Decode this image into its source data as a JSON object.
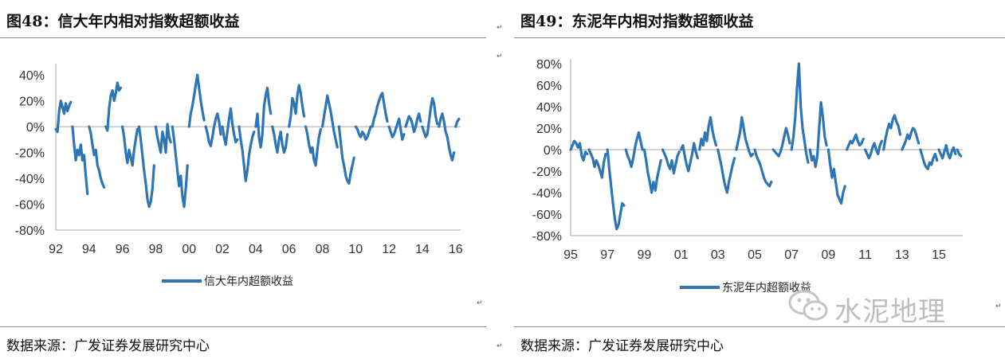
{
  "left": {
    "figure_title": "图48：信大年内相对指数超额收益",
    "source": "数据来源：广发证券发展研究中心"
  },
  "right": {
    "figure_title": "图49：东泥年内相对指数超额收益",
    "source": "数据来源：广发证券发展研究中心"
  },
  "watermark": {
    "text": "水泥地理",
    "icon": "wechat-logo-icon"
  },
  "chart_data": [
    {
      "type": "line",
      "color": "#2e75b6",
      "legend": [
        "信大年内超额收益"
      ],
      "legend_position": "bottom",
      "grid": false,
      "y_axis": {
        "ticks": [
          "40%",
          "20%",
          "0%",
          "-20%",
          "-40%",
          "-60%",
          "-80%"
        ],
        "ylim": [
          -80,
          45
        ]
      },
      "x_axis": {
        "ticks": [
          "92",
          "94",
          "96",
          "98",
          "00",
          "02",
          "04",
          "06",
          "08",
          "10",
          "12",
          "14",
          "16"
        ],
        "xlim": [
          1992,
          2016.3
        ]
      },
      "series": [
        {
          "name": "信大年内超额收益",
          "x": [
            1992.0,
            1992.1,
            1992.2,
            1992.3,
            1992.4,
            1992.5,
            1992.6,
            1992.7,
            1992.8,
            1992.9,
            1993.0,
            1993.1,
            1993.2,
            1993.3,
            1993.4,
            1993.5,
            1993.6,
            1993.7,
            1993.8,
            1993.9,
            1994.0,
            1994.1,
            1994.2,
            1994.3,
            1994.4,
            1994.5,
            1994.6,
            1994.7,
            1994.8,
            1994.9,
            1995.0,
            1995.1,
            1995.2,
            1995.3,
            1995.4,
            1995.5,
            1995.6,
            1995.7,
            1995.8,
            1995.9,
            1996.0,
            1996.1,
            1996.2,
            1996.3,
            1996.4,
            1996.5,
            1996.6,
            1996.7,
            1996.8,
            1996.9,
            1997.0,
            1997.1,
            1997.2,
            1997.3,
            1997.4,
            1997.5,
            1997.6,
            1997.7,
            1997.8,
            1997.9,
            1998.0,
            1998.1,
            1998.2,
            1998.3,
            1998.4,
            1998.5,
            1998.6,
            1998.7,
            1998.8,
            1998.9,
            1999.0,
            1999.1,
            1999.2,
            1999.3,
            1999.4,
            1999.5,
            1999.6,
            1999.7,
            1999.8,
            1999.9,
            2000.0,
            2000.1,
            2000.2,
            2000.3,
            2000.4,
            2000.5,
            2000.6,
            2000.7,
            2000.8,
            2000.9,
            2001.0,
            2001.1,
            2001.2,
            2001.3,
            2001.4,
            2001.5,
            2001.6,
            2001.7,
            2001.8,
            2001.9,
            2002.0,
            2002.1,
            2002.2,
            2002.3,
            2002.4,
            2002.5,
            2002.6,
            2002.7,
            2002.8,
            2002.9,
            2003.0,
            2003.1,
            2003.2,
            2003.3,
            2003.4,
            2003.5,
            2003.6,
            2003.7,
            2003.8,
            2003.9,
            2004.0,
            2004.1,
            2004.2,
            2004.3,
            2004.4,
            2004.5,
            2004.6,
            2004.7,
            2004.8,
            2004.9,
            2005.0,
            2005.1,
            2005.2,
            2005.3,
            2005.4,
            2005.5,
            2005.6,
            2005.7,
            2005.8,
            2005.9,
            2006.0,
            2006.1,
            2006.2,
            2006.3,
            2006.4,
            2006.5,
            2006.6,
            2006.7,
            2006.8,
            2006.9,
            2007.0,
            2007.1,
            2007.2,
            2007.3,
            2007.4,
            2007.5,
            2007.6,
            2007.7,
            2007.8,
            2007.9,
            2008.0,
            2008.1,
            2008.2,
            2008.3,
            2008.4,
            2008.5,
            2008.6,
            2008.7,
            2008.8,
            2008.9,
            2009.0,
            2009.1,
            2009.2,
            2009.3,
            2009.4,
            2009.5,
            2009.6,
            2009.7,
            2009.8,
            2009.9,
            2010.0,
            2010.1,
            2010.2,
            2010.3,
            2010.4,
            2010.5,
            2010.6,
            2010.7,
            2010.8,
            2010.9,
            2011.0,
            2011.1,
            2011.2,
            2011.3,
            2011.4,
            2011.5,
            2011.6,
            2011.7,
            2011.8,
            2011.9,
            2012.0,
            2012.1,
            2012.2,
            2012.3,
            2012.4,
            2012.5,
            2012.6,
            2012.7,
            2012.8,
            2012.9,
            2013.0,
            2013.1,
            2013.2,
            2013.3,
            2013.4,
            2013.5,
            2013.6,
            2013.7,
            2013.8,
            2013.9,
            2014.0,
            2014.1,
            2014.2,
            2014.3,
            2014.4,
            2014.5,
            2014.6,
            2014.7,
            2014.8,
            2014.9,
            2015.0,
            2015.1,
            2015.2,
            2015.3,
            2015.4,
            2015.5,
            2015.6,
            2015.7,
            2015.8,
            2015.9,
            2016.0,
            2016.1,
            2016.2
          ],
          "y": [
            -2,
            -4,
            12,
            20,
            15,
            10,
            18,
            12,
            16,
            19,
            0,
            -14,
            -26,
            -18,
            -22,
            -14,
            -26,
            -22,
            -38,
            -52,
            0,
            -5,
            -14,
            -22,
            -18,
            -30,
            -34,
            -40,
            -44,
            -47,
            0,
            -3,
            14,
            24,
            28,
            20,
            26,
            34,
            28,
            30,
            0,
            -8,
            -20,
            -28,
            -18,
            -24,
            -30,
            -18,
            -10,
            -2,
            0,
            -10,
            -22,
            -34,
            -44,
            -56,
            -62,
            -58,
            -48,
            -30,
            0,
            -8,
            -14,
            -20,
            -4,
            -10,
            -20,
            2,
            -8,
            -12,
            0,
            -10,
            -22,
            -34,
            -46,
            -38,
            -54,
            -62,
            -48,
            -30,
            0,
            10,
            16,
            24,
            32,
            40,
            30,
            20,
            12,
            5,
            0,
            -5,
            -12,
            -15,
            -8,
            0,
            6,
            10,
            4,
            -6,
            0,
            -8,
            -14,
            -4,
            6,
            14,
            2,
            -6,
            -12,
            -10,
            0,
            -10,
            -18,
            -30,
            -42,
            -34,
            -22,
            -14,
            -8,
            -4,
            0,
            10,
            -8,
            -16,
            -6,
            16,
            24,
            30,
            18,
            10,
            0,
            -6,
            -14,
            -20,
            -10,
            -4,
            -14,
            -20,
            -16,
            -6,
            0,
            8,
            22,
            18,
            10,
            24,
            32,
            26,
            16,
            8,
            0,
            -6,
            -14,
            -20,
            -16,
            -26,
            -30,
            -18,
            -8,
            -2,
            0,
            8,
            16,
            24,
            18,
            12,
            4,
            -4,
            -10,
            -16,
            0,
            -12,
            -24,
            -30,
            -38,
            -42,
            -44,
            -36,
            -30,
            -24,
            0,
            -2,
            -6,
            -8,
            -4,
            -6,
            -10,
            -8,
            -4,
            0,
            0,
            6,
            10,
            16,
            20,
            24,
            26,
            18,
            10,
            4,
            0,
            -4,
            -8,
            -6,
            -2,
            2,
            6,
            -2,
            -10,
            -6,
            0,
            4,
            8,
            6,
            2,
            -4,
            0,
            6,
            10,
            4,
            0,
            -4,
            -8,
            -6,
            4,
            14,
            22,
            18,
            8,
            2,
            0,
            6,
            10,
            4,
            -4,
            -8,
            -16,
            -22,
            -26,
            -20,
            0,
            4,
            6
          ]
        }
      ]
    },
    {
      "type": "line",
      "color": "#2e75b6",
      "legend": [
        "东泥年内超额收益"
      ],
      "legend_position": "bottom",
      "grid": false,
      "y_axis": {
        "ticks": [
          "80%",
          "60%",
          "40%",
          "20%",
          "0%",
          "-20%",
          "-40%",
          "-60%",
          "-80%"
        ],
        "ylim": [
          -80,
          80
        ]
      },
      "x_axis": {
        "ticks": [
          "95",
          "97",
          "99",
          "01",
          "03",
          "05",
          "07",
          "09",
          "11",
          "13",
          "15"
        ],
        "xlim": [
          1995,
          2016.3
        ]
      },
      "series": [
        {
          "name": "东泥年内超额收益",
          "x": [
            1995.0,
            1995.1,
            1995.2,
            1995.3,
            1995.4,
            1995.5,
            1995.6,
            1995.7,
            1995.8,
            1995.9,
            1996.0,
            1996.1,
            1996.2,
            1996.3,
            1996.4,
            1996.5,
            1996.6,
            1996.7,
            1996.8,
            1996.9,
            1997.0,
            1997.1,
            1997.2,
            1997.3,
            1997.4,
            1997.5,
            1997.6,
            1997.7,
            1997.8,
            1997.9,
            1998.0,
            1998.1,
            1998.2,
            1998.3,
            1998.4,
            1998.5,
            1998.6,
            1998.7,
            1998.8,
            1998.9,
            1999.0,
            1999.1,
            1999.2,
            1999.3,
            1999.4,
            1999.5,
            1999.6,
            1999.7,
            1999.8,
            1999.9,
            2000.0,
            2000.1,
            2000.2,
            2000.3,
            2000.4,
            2000.5,
            2000.6,
            2000.7,
            2000.8,
            2000.9,
            2001.0,
            2001.1,
            2001.2,
            2001.3,
            2001.4,
            2001.5,
            2001.6,
            2001.7,
            2001.8,
            2001.9,
            2002.0,
            2002.1,
            2002.2,
            2002.3,
            2002.4,
            2002.5,
            2002.6,
            2002.7,
            2002.8,
            2002.9,
            2003.0,
            2003.1,
            2003.2,
            2003.3,
            2003.4,
            2003.5,
            2003.6,
            2003.7,
            2003.8,
            2003.9,
            2004.0,
            2004.1,
            2004.2,
            2004.3,
            2004.4,
            2004.5,
            2004.6,
            2004.7,
            2004.8,
            2004.9,
            2005.0,
            2005.1,
            2005.2,
            2005.3,
            2005.4,
            2005.5,
            2005.6,
            2005.7,
            2005.8,
            2005.9,
            2006.0,
            2006.1,
            2006.2,
            2006.3,
            2006.4,
            2006.5,
            2006.6,
            2006.7,
            2006.8,
            2006.9,
            2007.0,
            2007.1,
            2007.2,
            2007.3,
            2007.4,
            2007.5,
            2007.6,
            2007.7,
            2007.8,
            2007.9,
            2008.0,
            2008.1,
            2008.2,
            2008.3,
            2008.4,
            2008.5,
            2008.6,
            2008.7,
            2008.8,
            2008.9,
            2009.0,
            2009.1,
            2009.2,
            2009.3,
            2009.4,
            2009.5,
            2009.6,
            2009.7,
            2009.8,
            2009.9,
            2010.0,
            2010.1,
            2010.2,
            2010.3,
            2010.4,
            2010.5,
            2010.6,
            2010.7,
            2010.8,
            2010.9,
            2011.0,
            2011.1,
            2011.2,
            2011.3,
            2011.4,
            2011.5,
            2011.6,
            2011.7,
            2011.8,
            2011.9,
            2012.0,
            2012.1,
            2012.2,
            2012.3,
            2012.4,
            2012.5,
            2012.6,
            2012.7,
            2012.8,
            2012.9,
            2013.0,
            2013.1,
            2013.2,
            2013.3,
            2013.4,
            2013.5,
            2013.6,
            2013.7,
            2013.8,
            2013.9,
            2014.0,
            2014.1,
            2014.2,
            2014.3,
            2014.4,
            2014.5,
            2014.6,
            2014.7,
            2014.8,
            2014.9,
            2015.0,
            2015.1,
            2015.2,
            2015.3,
            2015.4,
            2015.5,
            2015.6,
            2015.7,
            2015.8,
            2015.9,
            2016.0,
            2016.1,
            2016.2
          ],
          "y": [
            0,
            4,
            8,
            6,
            2,
            6,
            -6,
            -10,
            -2,
            -4,
            0,
            -4,
            -8,
            -16,
            -10,
            -14,
            -20,
            -26,
            -12,
            -4,
            0,
            -18,
            -34,
            -50,
            -64,
            -74,
            -70,
            -60,
            -50,
            -52,
            0,
            -6,
            -10,
            -16,
            -8,
            2,
            10,
            16,
            8,
            0,
            0,
            -10,
            -22,
            -30,
            -40,
            -30,
            -38,
            -26,
            -18,
            -10,
            0,
            -4,
            -8,
            -14,
            -18,
            -10,
            -22,
            -14,
            -6,
            -2,
            0,
            4,
            -6,
            -14,
            -20,
            -12,
            -4,
            6,
            -2,
            -8,
            0,
            10,
            4,
            16,
            8,
            22,
            30,
            18,
            10,
            4,
            0,
            -8,
            -16,
            -26,
            -34,
            -40,
            -30,
            -22,
            -14,
            -8,
            0,
            8,
            16,
            30,
            20,
            10,
            4,
            -2,
            -6,
            -4,
            0,
            -6,
            -10,
            -14,
            -20,
            -26,
            -30,
            -32,
            -34,
            -30,
            0,
            -2,
            -4,
            -6,
            -2,
            4,
            12,
            20,
            14,
            6,
            0,
            12,
            30,
            58,
            80,
            40,
            20,
            8,
            -4,
            -12,
            0,
            -10,
            -6,
            -16,
            -6,
            20,
            44,
            30,
            12,
            4,
            0,
            -14,
            -26,
            -18,
            -30,
            -42,
            -46,
            -50,
            -40,
            -34,
            0,
            4,
            8,
            6,
            10,
            14,
            8,
            4,
            6,
            10,
            0,
            -4,
            -8,
            -4,
            2,
            6,
            0,
            -4,
            4,
            8,
            0,
            10,
            18,
            24,
            20,
            28,
            32,
            26,
            22,
            14,
            0,
            4,
            8,
            14,
            10,
            16,
            20,
            18,
            12,
            6,
            0,
            -6,
            -12,
            -16,
            -18,
            -12,
            -14,
            -8,
            -4,
            -10,
            0,
            -4,
            -8,
            -2,
            4,
            -4,
            -8,
            -2,
            2,
            -4,
            0,
            -4,
            -6
          ]
        }
      ]
    }
  ]
}
